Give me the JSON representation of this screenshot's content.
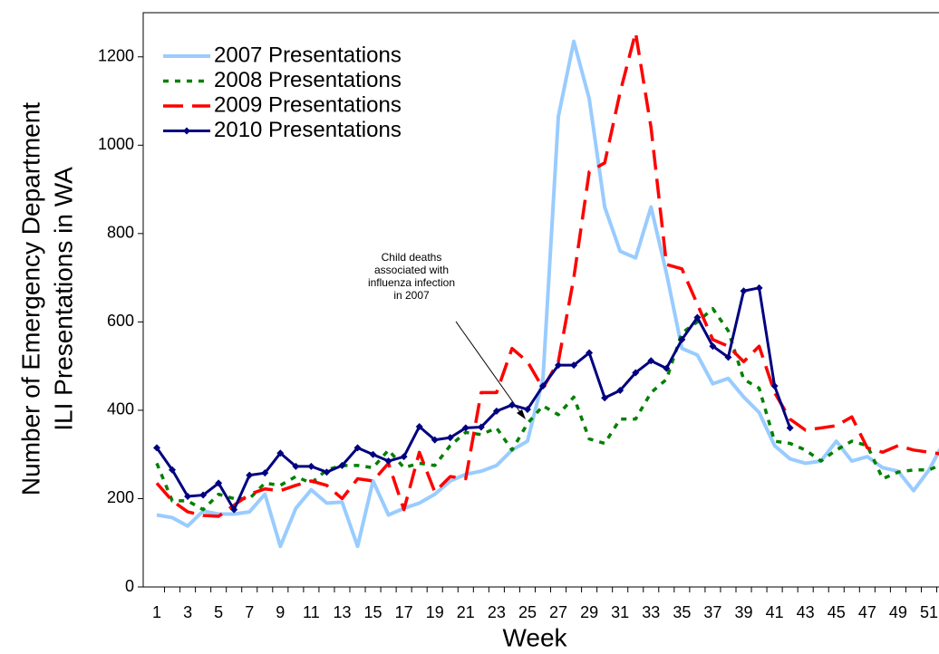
{
  "chart_data": {
    "type": "line",
    "y_label": [
      "Number of Emergency Department",
      "ILI Presentations in WA"
    ],
    "x_label": "Week",
    "categories": [
      1,
      null,
      3,
      null,
      5,
      null,
      7,
      null,
      9,
      null,
      11,
      null,
      13,
      null,
      15,
      null,
      17,
      null,
      19,
      null,
      21,
      null,
      23,
      null,
      25,
      null,
      27,
      null,
      29,
      null,
      31,
      null,
      33,
      null,
      35,
      null,
      37,
      null,
      39,
      null,
      41,
      null,
      43,
      null,
      45,
      null,
      47,
      null,
      49,
      null,
      51,
      null
    ],
    "ylim": [
      0,
      1300
    ],
    "yticks": [
      0,
      200,
      400,
      600,
      800,
      1000,
      1200
    ],
    "legend": "top-left",
    "annotation": [
      "Child deaths",
      "associated with",
      "influenza infection",
      "in 2007"
    ],
    "series": [
      {
        "name": "2007 Presentations",
        "color": "#99ccff",
        "style": "solid",
        "marker": "none",
        "values": [
          163,
          157,
          138,
          172,
          165,
          165,
          170,
          210,
          92,
          178,
          220,
          190,
          192,
          92,
          240,
          163,
          178,
          190,
          210,
          240,
          255,
          262,
          275,
          310,
          330,
          470,
          1065,
          1235,
          1105,
          860,
          760,
          745,
          860,
          710,
          540,
          525,
          460,
          472,
          430,
          395,
          320,
          290,
          280,
          285,
          330,
          285,
          295,
          270,
          262,
          218,
          265,
          330
        ]
      },
      {
        "name": "2008 Presentations",
        "color": "#008000",
        "style": "dotted",
        "marker": "none",
        "values": [
          280,
          195,
          195,
          175,
          210,
          200,
          200,
          235,
          230,
          250,
          235,
          265,
          275,
          275,
          270,
          310,
          270,
          280,
          275,
          320,
          350,
          345,
          360,
          310,
          370,
          410,
          390,
          430,
          335,
          325,
          380,
          380,
          440,
          470,
          575,
          600,
          630,
          580,
          470,
          450,
          330,
          325,
          310,
          285,
          310,
          330,
          320,
          245,
          260,
          265,
          265,
          280
        ]
      },
      {
        "name": "2009 Presentations",
        "color": "#ff0000",
        "style": "dashed",
        "marker": "none",
        "values": [
          235,
          195,
          170,
          162,
          160,
          185,
          210,
          222,
          218,
          230,
          240,
          230,
          200,
          245,
          240,
          280,
          175,
          305,
          215,
          250,
          245,
          440,
          440,
          540,
          510,
          450,
          510,
          700,
          940,
          960,
          1120,
          1255,
          1040,
          730,
          720,
          640,
          560,
          545,
          510,
          545,
          440,
          380,
          355,
          360,
          365,
          385,
          315,
          305,
          320,
          310,
          305,
          300
        ]
      },
      {
        "name": "2010 Presentations",
        "color": "#000080",
        "style": "solid",
        "marker": "diamond",
        "values": [
          315,
          265,
          205,
          208,
          235,
          175,
          253,
          258,
          303,
          273,
          273,
          260,
          275,
          315,
          300,
          285,
          295,
          363,
          333,
          338,
          360,
          362,
          398,
          412,
          402,
          455,
          502,
          502,
          530,
          428,
          445,
          485,
          512,
          495,
          560,
          610,
          545,
          520,
          670,
          677,
          455,
          360,
          null,
          null,
          null,
          null,
          null,
          null,
          null,
          null,
          null,
          null
        ]
      }
    ]
  }
}
